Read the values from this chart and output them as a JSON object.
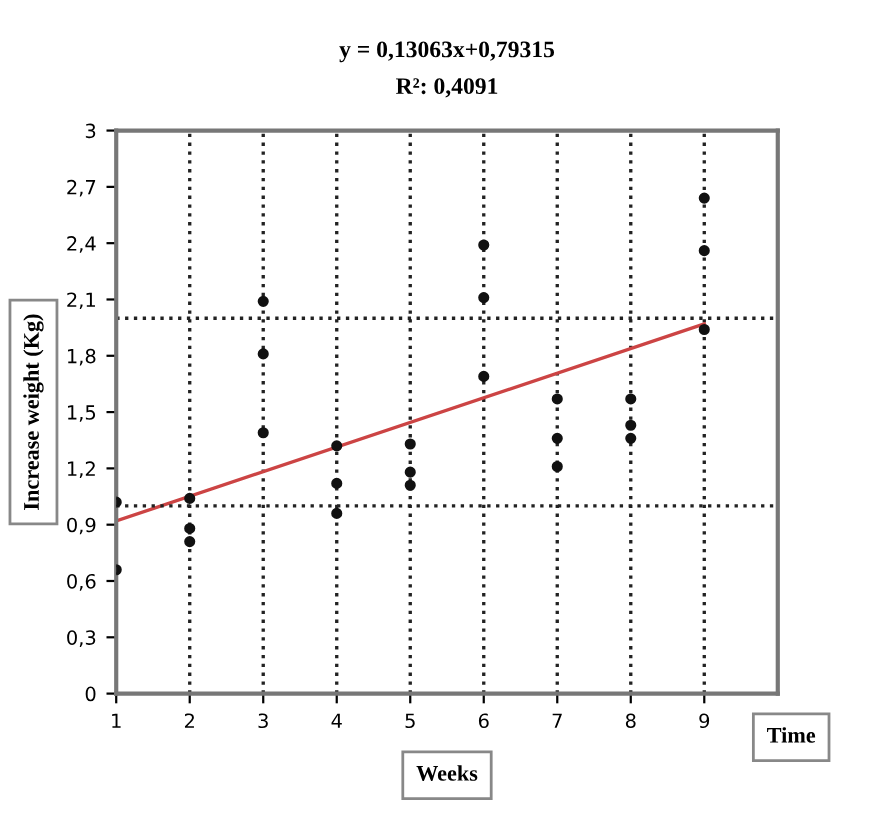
{
  "chart_data": {
    "type": "scatter",
    "title": "y = 0,13063x+0,79315",
    "subtitle": "R²: 0,4091",
    "xlabel": "Weeks",
    "ylabel": "Increase weight (Kg)",
    "annotations": [
      "Time"
    ],
    "series": [
      {
        "color": "#111111",
        "marker": "circle",
        "x": [
          1,
          1,
          2,
          2,
          2,
          3,
          3,
          3,
          4,
          4,
          4,
          5,
          5,
          5,
          6,
          6,
          6,
          7,
          7,
          7,
          8,
          8,
          8,
          9,
          9,
          9
        ],
        "values": [
          1.02,
          0.66,
          1.04,
          0.88,
          0.81,
          2.09,
          1.81,
          1.39,
          1.32,
          1.12,
          0.96,
          1.33,
          1.18,
          1.11,
          2.39,
          2.11,
          1.69,
          1.57,
          1.36,
          1.21,
          1.57,
          1.43,
          1.36,
          2.64,
          2.36,
          1.94
        ]
      },
      {
        "type": "line",
        "color": "#cc4444",
        "marker": "none",
        "line_style": "solid",
        "x": [
          1,
          9
        ],
        "values": [
          0.92,
          1.97
        ]
      }
    ],
    "xlim": [
      1,
      10
    ],
    "xticks": [
      1,
      2,
      3,
      4,
      5,
      6,
      7,
      8,
      9
    ],
    "ylim": [
      0,
      3
    ],
    "yticks": [
      0,
      {
        "value": 0.3,
        "label": "0,3"
      },
      {
        "value": 0.6,
        "label": "0,6"
      },
      {
        "value": 0.9,
        "label": "0,9"
      },
      {
        "value": 1.2,
        "label": "1,2"
      },
      {
        "value": 1.5,
        "label": "1,5"
      },
      {
        "value": 1.8,
        "label": "1,8"
      },
      {
        "value": 2.1,
        "label": "2,1"
      },
      {
        "value": 2.4,
        "label": "2,4"
      },
      {
        "value": 2.7,
        "label": "2,7"
      },
      3
    ],
    "grid": "x",
    "legend": false,
    "ref_lines": [
      {
        "axis": "y",
        "value": 1,
        "color": "#222222",
        "line_style": "dotted"
      },
      {
        "axis": "y",
        "value": 2,
        "color": "#222222",
        "line_style": "dotted"
      }
    ]
  }
}
